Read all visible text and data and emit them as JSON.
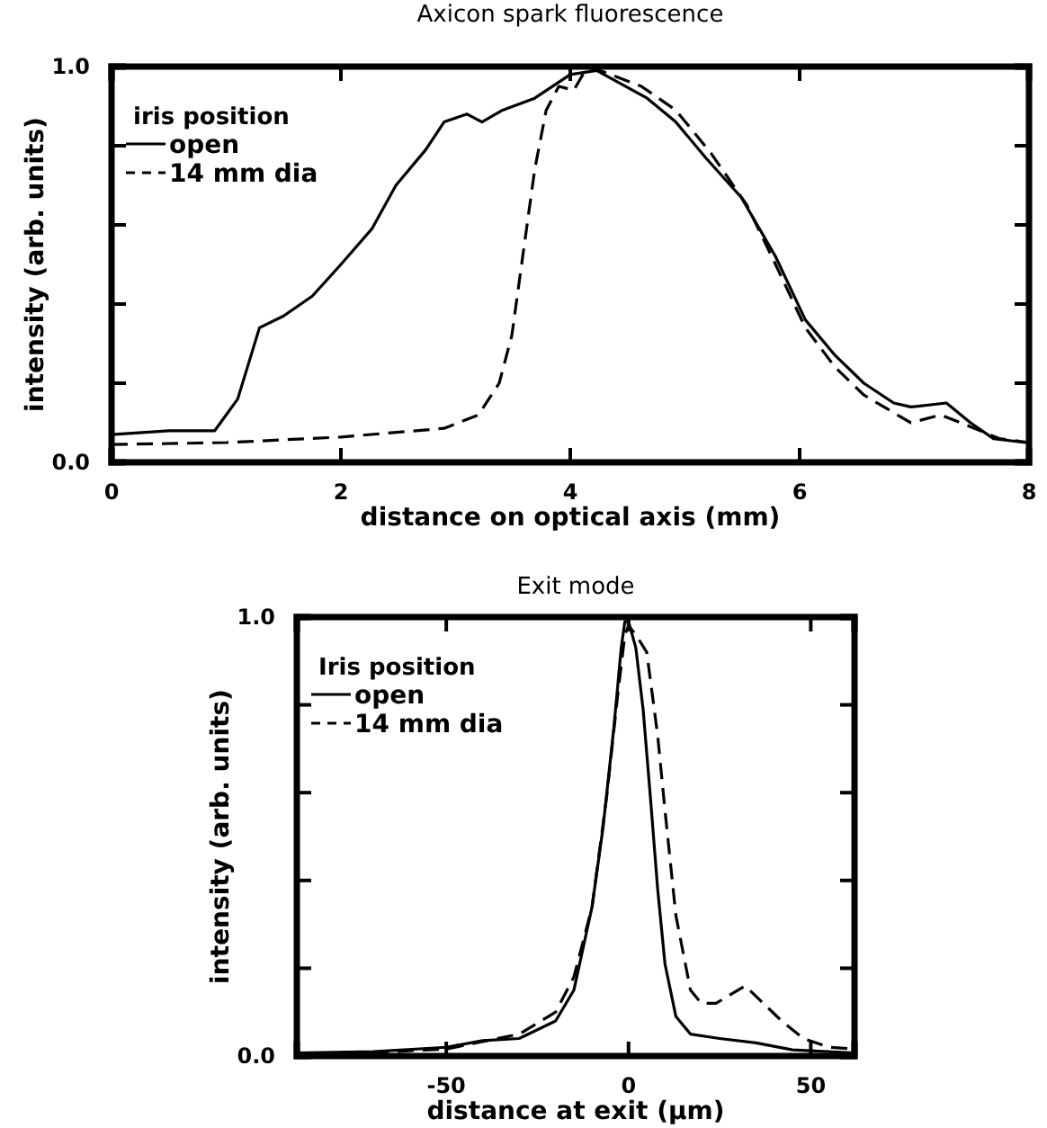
{
  "chart_data": [
    {
      "type": "line",
      "title": "Axicon spark fluorescence",
      "xlabel": "distance on optical axis (mm)",
      "ylabel": "intensity (arb. units)",
      "legend_title": "iris position",
      "legend": "top left",
      "grid": false,
      "marker": "none",
      "xlim": [
        0,
        8
      ],
      "xticks": [
        0,
        2,
        4,
        6,
        8
      ],
      "ylim": [
        0,
        1
      ],
      "yticks": [
        {
          "value": 0,
          "label": "0.0"
        },
        {
          "value": 0.2,
          "label": null
        },
        {
          "value": 0.4,
          "label": null
        },
        {
          "value": 0.6,
          "label": null
        },
        {
          "value": 0.8,
          "label": null
        },
        {
          "value": 1,
          "label": "1.0"
        }
      ],
      "series": [
        {
          "name": "open",
          "color": "#000000",
          "line_style": "solid",
          "x": [
            0,
            0.5,
            0.9,
            1.1,
            1.29,
            1.5,
            1.75,
            2.0,
            2.27,
            2.48,
            2.74,
            2.9,
            3.1,
            3.23,
            3.41,
            3.69,
            4.0,
            4.23,
            4.67,
            4.92,
            5.18,
            5.49,
            5.79,
            6.05,
            6.31,
            6.56,
            6.82,
            6.97,
            7.28,
            7.49,
            7.69,
            7.97,
            8.0
          ],
          "values": [
            0.07,
            0.08,
            0.08,
            0.16,
            0.34,
            0.37,
            0.42,
            0.5,
            0.59,
            0.7,
            0.79,
            0.86,
            0.88,
            0.86,
            0.89,
            0.92,
            0.98,
            0.99,
            0.92,
            0.86,
            0.77,
            0.67,
            0.52,
            0.36,
            0.27,
            0.2,
            0.15,
            0.14,
            0.15,
            0.1,
            0.06,
            0.05,
            0.05
          ]
        },
        {
          "name": "14 mm dia",
          "color": "#000000",
          "line_style": "dashed",
          "x": [
            0,
            1.0,
            2.0,
            2.9,
            3.2,
            3.38,
            3.49,
            3.59,
            3.69,
            3.79,
            3.9,
            4.03,
            4.13,
            4.26,
            4.62,
            4.92,
            5.23,
            5.54,
            5.79,
            6.05,
            6.31,
            6.56,
            6.97,
            7.23,
            7.49,
            7.74,
            8.0
          ],
          "values": [
            0.045,
            0.05,
            0.064,
            0.086,
            0.12,
            0.2,
            0.32,
            0.53,
            0.74,
            0.89,
            0.95,
            0.94,
            0.99,
            0.99,
            0.95,
            0.89,
            0.78,
            0.65,
            0.5,
            0.34,
            0.24,
            0.17,
            0.1,
            0.12,
            0.09,
            0.06,
            0.05
          ]
        }
      ]
    },
    {
      "type": "line",
      "title": "Exit mode",
      "xlabel": "distance at exit (μm)",
      "ylabel": "intensity (arb. units)",
      "legend_title": "Iris position",
      "legend": "top left",
      "grid": false,
      "marker": "none",
      "xlim": [
        -91,
        62
      ],
      "xticks": [
        -50,
        0,
        50
      ],
      "ylim": [
        0,
        1
      ],
      "yticks": [
        {
          "value": 0,
          "label": "0.0"
        },
        {
          "value": 0.2,
          "label": null
        },
        {
          "value": 0.4,
          "label": null
        },
        {
          "value": 0.6,
          "label": null
        },
        {
          "value": 0.8,
          "label": null
        },
        {
          "value": 1,
          "label": "1.0"
        }
      ],
      "series": [
        {
          "name": "open",
          "color": "#000000",
          "line_style": "solid",
          "x": [
            -91,
            -70,
            -50,
            -40,
            -30,
            -20,
            -15,
            -10,
            -7,
            -4,
            -2,
            -1,
            0,
            2,
            4,
            6,
            8,
            10,
            13,
            17,
            25,
            35,
            45,
            62
          ],
          "values": [
            0.007,
            0.01,
            0.02,
            0.035,
            0.04,
            0.08,
            0.15,
            0.34,
            0.52,
            0.75,
            0.93,
            0.99,
            0.99,
            0.93,
            0.79,
            0.59,
            0.38,
            0.21,
            0.09,
            0.05,
            0.04,
            0.03,
            0.014,
            0.007
          ]
        },
        {
          "name": "14 mm dia",
          "color": "#000000",
          "line_style": "dashed",
          "x": [
            -91,
            -70,
            -50,
            -30,
            -25,
            -20,
            -15,
            -10,
            -6,
            -3,
            -1,
            0,
            2,
            5,
            8,
            10,
            13,
            17,
            20,
            24,
            28,
            32,
            37,
            42,
            48,
            55,
            62
          ],
          "values": [
            0.003,
            0.008,
            0.016,
            0.05,
            0.075,
            0.1,
            0.18,
            0.34,
            0.59,
            0.82,
            0.96,
            0.98,
            0.96,
            0.92,
            0.73,
            0.56,
            0.32,
            0.15,
            0.12,
            0.12,
            0.14,
            0.16,
            0.12,
            0.08,
            0.04,
            0.02,
            0.016
          ]
        }
      ]
    }
  ]
}
